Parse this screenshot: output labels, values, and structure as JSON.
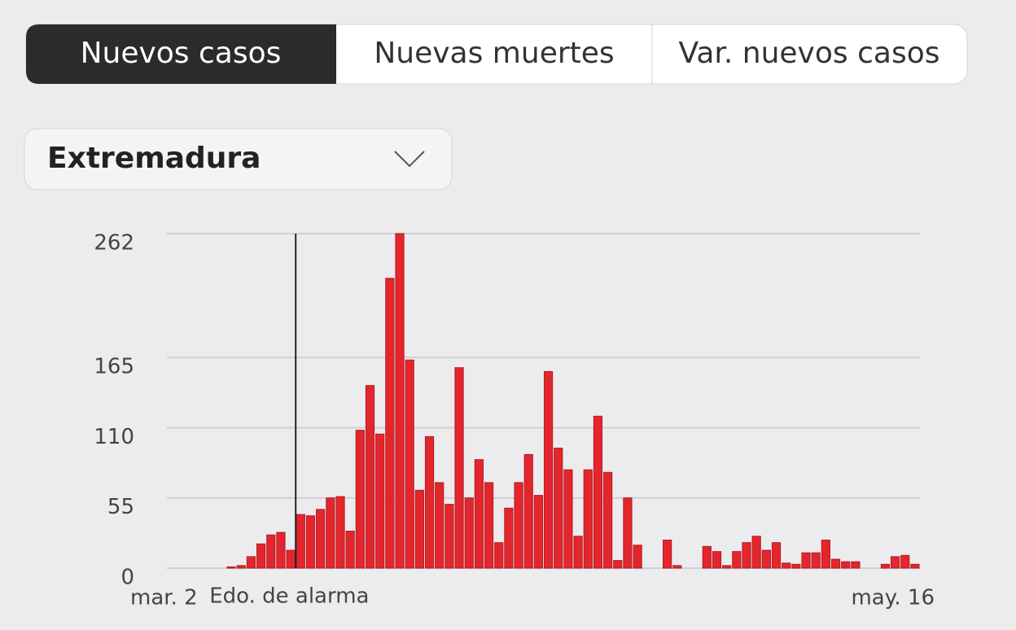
{
  "tabs": [
    "Nuevos casos",
    "Nuevas muertes",
    "Var. nuevos casos"
  ],
  "active_tab": 0,
  "region_select": "Extremadura",
  "chart_data": {
    "type": "bar",
    "categories": [
      "mar. 2",
      null,
      null,
      null,
      null,
      null,
      null,
      null,
      null,
      null,
      null,
      null,
      null,
      null,
      null,
      null,
      null,
      null,
      null,
      null,
      null,
      null,
      null,
      null,
      null,
      null,
      null,
      null,
      null,
      null,
      null,
      null,
      null,
      null,
      null,
      null,
      null,
      null,
      null,
      null,
      null,
      null,
      null,
      null,
      null,
      null,
      null,
      null,
      null,
      null,
      null,
      null,
      null,
      null,
      null,
      null,
      null,
      null,
      null,
      null,
      null,
      null,
      null,
      null,
      null,
      null,
      null,
      null,
      null,
      null,
      null,
      null,
      null,
      null,
      null,
      "may. 16"
    ],
    "values": [
      0,
      0,
      0,
      0,
      0,
      0,
      1,
      2,
      9,
      19,
      26,
      28,
      14,
      42,
      41,
      46,
      55,
      56,
      29,
      108,
      143,
      105,
      227,
      262,
      163,
      61,
      103,
      67,
      50,
      157,
      55,
      85,
      67,
      20,
      47,
      67,
      89,
      57,
      154,
      94,
      77,
      25,
      77,
      119,
      75,
      6,
      55,
      18,
      0,
      0,
      22,
      2,
      0,
      0,
      17,
      13,
      2,
      13,
      20,
      25,
      14,
      20,
      4,
      3,
      12,
      12,
      22,
      7,
      5,
      5,
      0,
      0,
      3,
      9,
      10,
      3
    ],
    "color": "#e3262d",
    "ylim": [
      0,
      262
    ],
    "yticks": [
      0,
      55,
      110,
      165,
      262
    ],
    "grid": true,
    "annotation": {
      "text": "Edo. de alarma",
      "at": 12
    }
  }
}
